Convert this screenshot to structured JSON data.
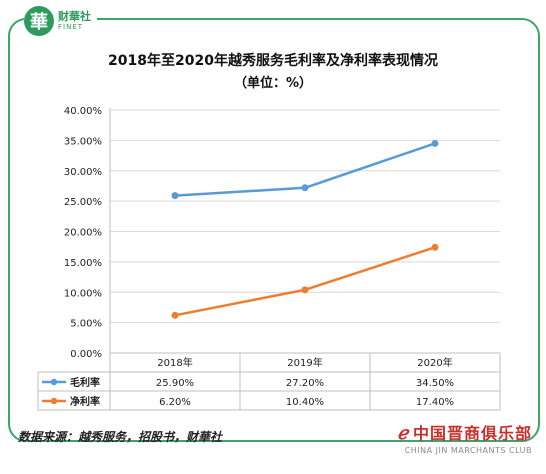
{
  "logo": {
    "mark": "華",
    "name_cn": "财華社",
    "name_en": "FINET"
  },
  "chart_data": {
    "type": "line",
    "title": "2018年至2020年越秀服务毛利率及净利率表现情况",
    "subtitle": "（单位：%）",
    "categories": [
      "2018年",
      "2019年",
      "2020年"
    ],
    "series": [
      {
        "name": "毛利率",
        "values": [
          25.9,
          27.2,
          34.5
        ],
        "labels": [
          "25.90%",
          "27.20%",
          "34.50%"
        ],
        "color": "#5b9bd5"
      },
      {
        "name": "净利率",
        "values": [
          6.2,
          10.4,
          17.4
        ],
        "labels": [
          "6.20%",
          "10.40%",
          "17.40%"
        ],
        "color": "#ed7d31"
      }
    ],
    "ylim": [
      0,
      40
    ],
    "yticks": [
      "0.00%",
      "5.00%",
      "10.00%",
      "15.00%",
      "20.00%",
      "25.00%",
      "30.00%",
      "35.00%",
      "40.00%"
    ],
    "grid": true,
    "data_table": true
  },
  "source": "数据来源：越秀服务，招股书，财華社",
  "watermark": {
    "cn": "中国晋商俱乐部",
    "en": "CHINA JIN MARCHANTS CLUB"
  }
}
